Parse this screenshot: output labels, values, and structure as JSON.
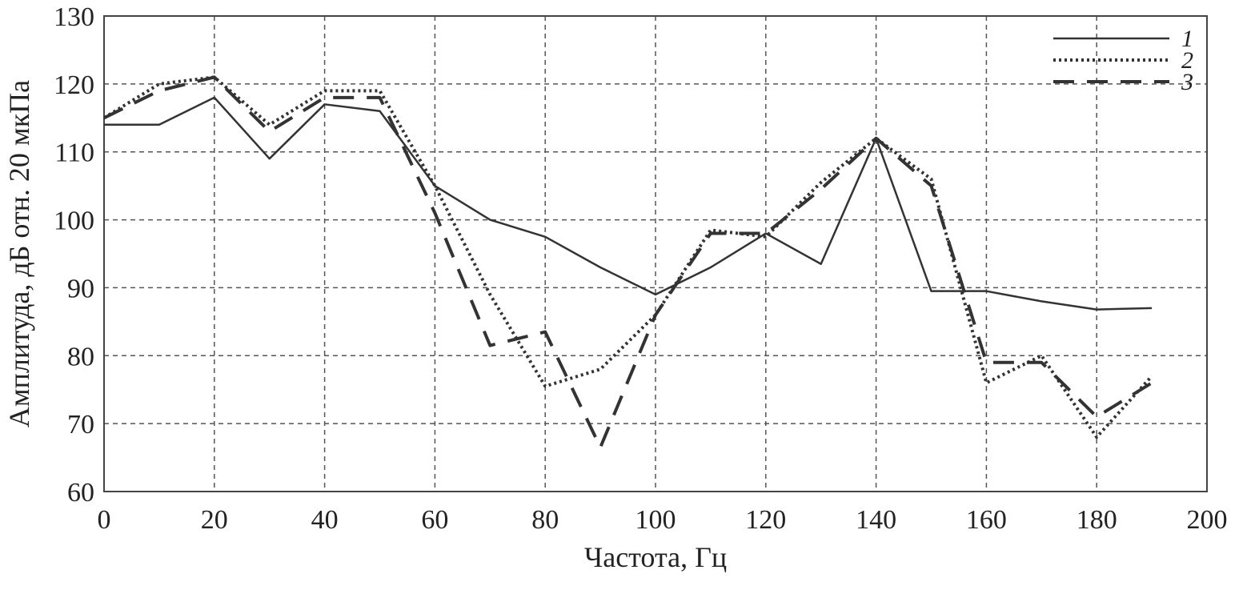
{
  "chart_data": {
    "type": "line",
    "x_label": "Частота, Гц",
    "y_label": "Амплитуда, дБ отн. 20 мкПа",
    "x": [
      0,
      10,
      20,
      30,
      40,
      50,
      60,
      70,
      80,
      90,
      100,
      110,
      120,
      130,
      140,
      150,
      160,
      170,
      180,
      190
    ],
    "series": [
      {
        "name": "1",
        "color": "#333333",
        "style": "solid",
        "values": [
          114,
          114,
          118,
          109,
          117,
          116,
          105,
          100,
          97.5,
          93,
          89,
          93,
          98,
          93.5,
          112,
          89.5,
          89.5,
          88,
          86.8,
          87
        ]
      },
      {
        "name": "2",
        "color": "#333333",
        "style": "dotted",
        "values": [
          115,
          120,
          121,
          114,
          119,
          119,
          105,
          89,
          75.5,
          78,
          86,
          98.5,
          97.5,
          105.5,
          112,
          106,
          76,
          80,
          68,
          77
        ]
      },
      {
        "name": "3",
        "color": "#333333",
        "style": "dashed",
        "values": [
          115,
          119,
          121,
          113,
          118,
          118,
          101,
          81.5,
          83.5,
          66.5,
          86,
          98,
          98,
          104.5,
          112,
          105,
          79,
          79,
          71,
          76
        ]
      }
    ],
    "xlim": [
      0,
      200
    ],
    "ylim": [
      60,
      130
    ],
    "xticks": [
      0,
      20,
      40,
      60,
      80,
      100,
      120,
      140,
      160,
      180,
      200
    ],
    "yticks": [
      60,
      70,
      80,
      90,
      100,
      110,
      120,
      130
    ],
    "grid": true,
    "legend": "upper right"
  }
}
